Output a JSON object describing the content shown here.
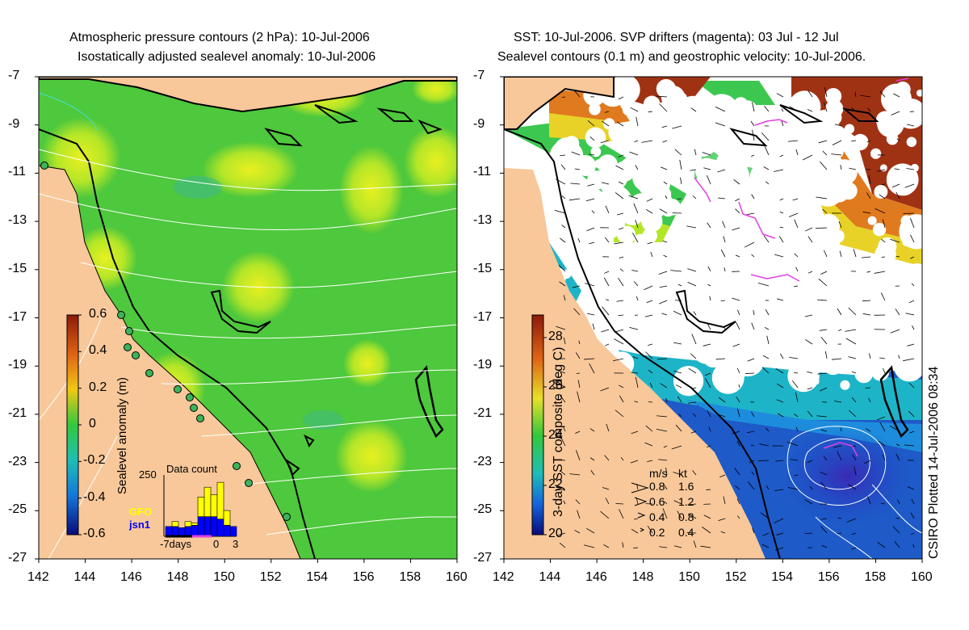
{
  "left_panel": {
    "title_line1": "Atmospheric pressure contours (2 hPa): 10-Jul-2006",
    "title_line2": "Isostatically adjusted sealevel anomaly: 10-Jul-2006",
    "y_ticks": [
      "-7",
      "-9",
      "-11",
      "-13",
      "-15",
      "-17",
      "-19",
      "-21",
      "-23",
      "-25",
      "-27"
    ],
    "x_ticks": [
      "142",
      "144",
      "146",
      "148",
      "150",
      "152",
      "154",
      "156",
      "158",
      "160"
    ],
    "colorbar_label": "Sealevel anomaly (m)",
    "colorbar_ticks": [
      "0.6",
      "0.4",
      "0.2",
      "0",
      "-0.2",
      "-0.4",
      "-0.6"
    ],
    "data_count": {
      "title": "Data count",
      "y_max_label": "250",
      "series1_label": "GFO",
      "series2_label": "jsn1",
      "x_label_left": "-7days",
      "x_label_mid": "0",
      "x_label_right": "3",
      "gfo_values": [
        0,
        20,
        0,
        20,
        10,
        80,
        120,
        90,
        150,
        60,
        0
      ],
      "jsn1_values": [
        40,
        40,
        35,
        40,
        45,
        80,
        80,
        80,
        70,
        45,
        40
      ]
    }
  },
  "right_panel": {
    "title_line1": "SST: 10-Jul-2006. SVP drifters (magenta): 03 Jul - 12 Jul",
    "title_line2": "Sealevel contours (0.1 m) and geostrophic velocity: 10-Jul-2006.",
    "y_ticks": [
      "-7",
      "-9",
      "-11",
      "-13",
      "-15",
      "-17",
      "-19",
      "-21",
      "-23",
      "-25",
      "-27"
    ],
    "x_ticks": [
      "142",
      "144",
      "146",
      "148",
      "150",
      "152",
      "154",
      "156",
      "158",
      "160"
    ],
    "colorbar_label": "3-day SST composite (deg C)",
    "colorbar_ticks": [
      "28",
      "26",
      "24",
      "22",
      "20"
    ],
    "velocity_legend": {
      "header_ms": "m/s",
      "header_kt": "kt",
      "rows": [
        {
          "ms": "0.8",
          "kt": "1.6"
        },
        {
          "ms": "0.6",
          "kt": "1.2"
        },
        {
          "ms": "0.4",
          "kt": "0.8"
        },
        {
          "ms": "0.2",
          "kt": "0.4"
        }
      ]
    }
  },
  "credit": "CSIRO Plotted 14-Jul-2006 08:34",
  "colors": {
    "land": "#f8c89a",
    "ocean_green": "#4ec83c",
    "ocean_yellowgreen": "#b4e628",
    "sst_blue": "#1e5ac8",
    "sst_cyan": "#1eb4c8",
    "sst_orange": "#e07a1e",
    "sst_brown": "#a03214",
    "drifter": "#e040e0",
    "gfo": "#ffff00",
    "jsn1": "#0000ff"
  }
}
